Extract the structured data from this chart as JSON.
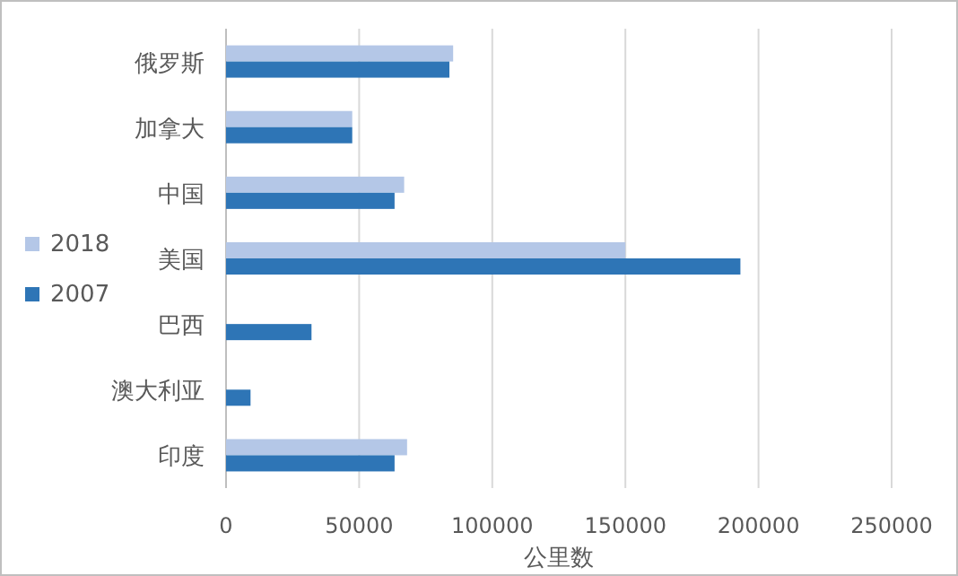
{
  "chart_data": {
    "type": "bar",
    "orientation": "horizontal",
    "xlabel": "公里数",
    "categories": [
      "俄罗斯",
      "加拿大",
      "中国",
      "美国",
      "巴西",
      "澳大利亚",
      "印度"
    ],
    "series": [
      {
        "name": "2018",
        "color": "#b4c7e7",
        "values": [
          85300,
          47400,
          66900,
          150000,
          null,
          null,
          68000
        ]
      },
      {
        "name": "2007",
        "color": "#2e75b6",
        "values": [
          83900,
          47400,
          63300,
          193200,
          32100,
          9200,
          63300
        ]
      }
    ],
    "xlim": [
      0,
      250000
    ],
    "xticks": [
      0,
      50000,
      100000,
      150000,
      200000,
      250000
    ],
    "grid": "x",
    "legend": "left"
  }
}
